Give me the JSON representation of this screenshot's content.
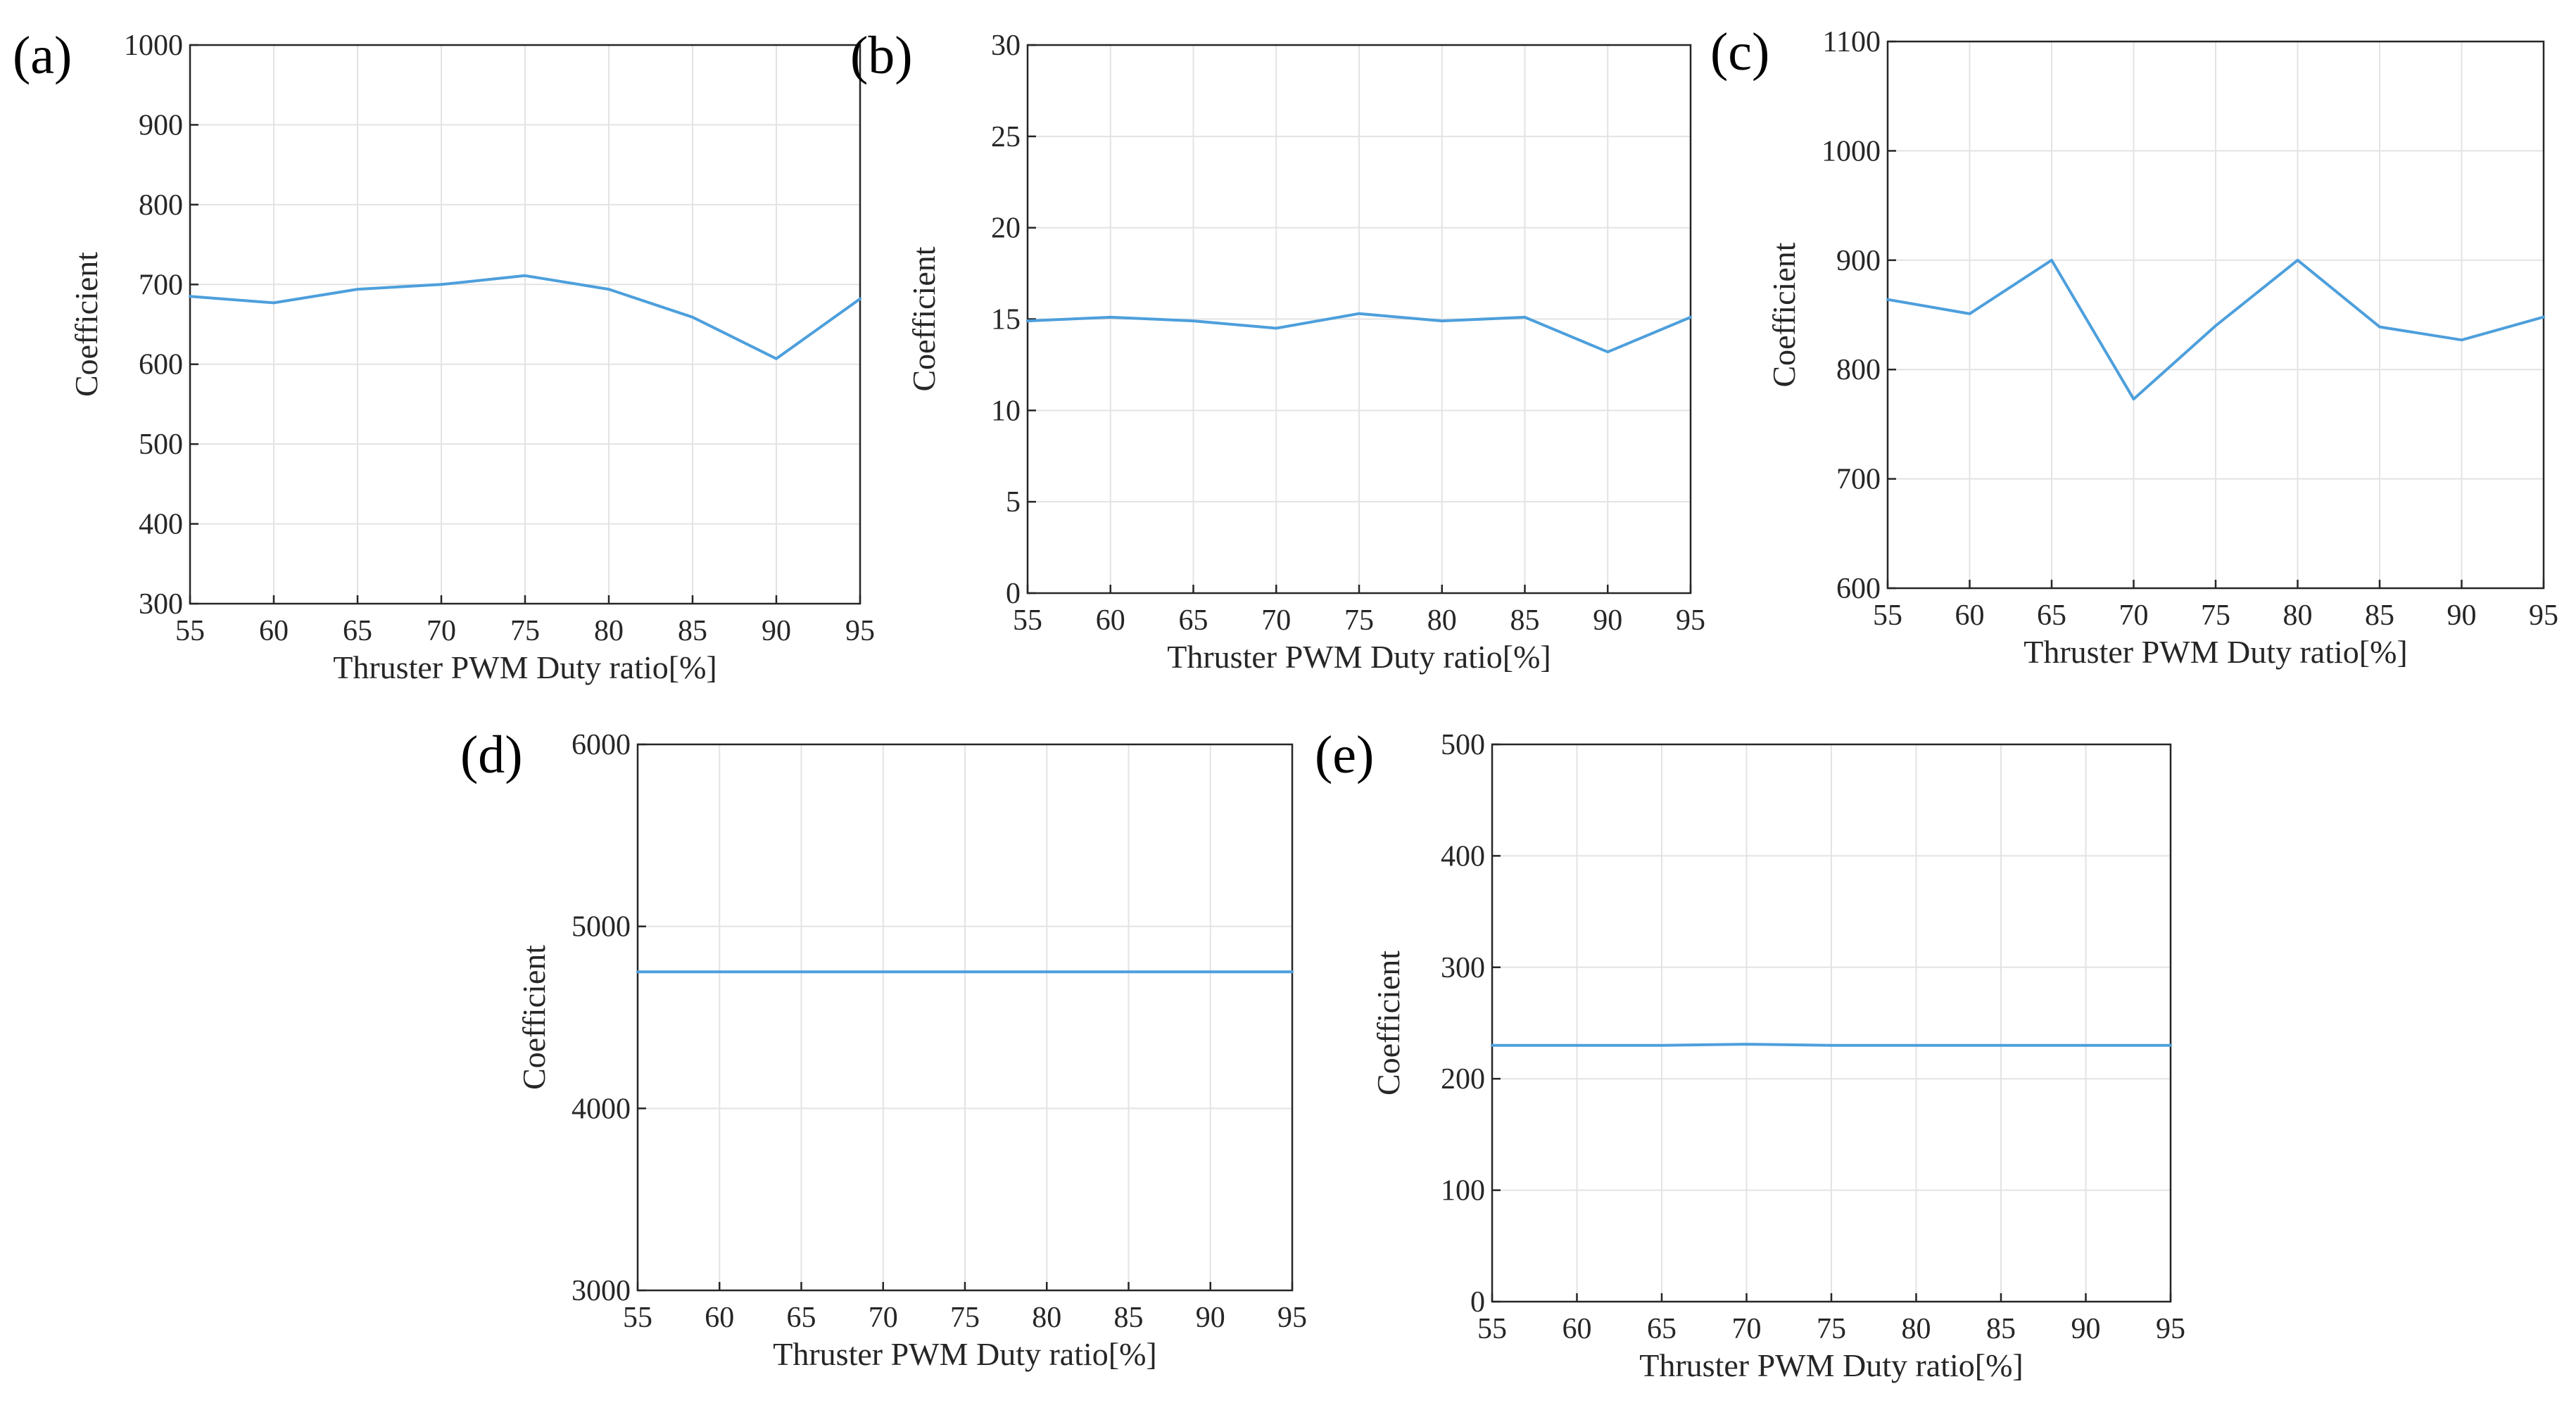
{
  "figure": {
    "line_color": "#4d9fdc",
    "grid_color": "#e3e3e3",
    "axis_color": "#262626"
  },
  "chart_data": [
    {
      "type": "line",
      "panel_label": "(a)",
      "xlabel": "Thruster PWM Duty ratio[%]",
      "ylabel": "Coefficient",
      "x": [
        55,
        60,
        65,
        70,
        75,
        80,
        85,
        90,
        95
      ],
      "y": [
        685,
        677,
        694,
        700,
        711,
        694,
        659,
        607,
        682
      ],
      "xlim": [
        55,
        95
      ],
      "ylim": [
        300,
        1000
      ],
      "xticks": [
        55,
        60,
        65,
        70,
        75,
        80,
        85,
        90,
        95
      ],
      "yticks": [
        300,
        400,
        500,
        600,
        700,
        800,
        900,
        1000
      ],
      "grid": true
    },
    {
      "type": "line",
      "panel_label": "(b)",
      "xlabel": "Thruster PWM Duty ratio[%]",
      "ylabel": "Coefficient",
      "x": [
        55,
        60,
        65,
        70,
        75,
        80,
        85,
        90,
        95
      ],
      "y": [
        14.9,
        15.1,
        14.9,
        14.5,
        15.3,
        14.9,
        15.1,
        13.2,
        15.1
      ],
      "xlim": [
        55,
        95
      ],
      "ylim": [
        0,
        30
      ],
      "xticks": [
        55,
        60,
        65,
        70,
        75,
        80,
        85,
        90,
        95
      ],
      "yticks": [
        0,
        5,
        10,
        15,
        20,
        25,
        30
      ],
      "grid": true
    },
    {
      "type": "line",
      "panel_label": "(c)",
      "xlabel": "Thruster PWM Duty ratio[%]",
      "ylabel": "Coefficient",
      "x": [
        55,
        60,
        65,
        70,
        75,
        80,
        85,
        90,
        95
      ],
      "y": [
        864,
        851,
        900,
        773,
        840,
        900,
        839,
        827,
        848
      ],
      "xlim": [
        55,
        95
      ],
      "ylim": [
        600,
        1100
      ],
      "xticks": [
        55,
        60,
        65,
        70,
        75,
        80,
        85,
        90,
        95
      ],
      "yticks": [
        600,
        700,
        800,
        900,
        1000,
        1100
      ],
      "grid": true
    },
    {
      "type": "line",
      "panel_label": "(d)",
      "xlabel": "Thruster PWM Duty ratio[%]",
      "ylabel": "Coefficient",
      "x": [
        55,
        60,
        65,
        70,
        75,
        80,
        85,
        90,
        95
      ],
      "y": [
        4750,
        4750,
        4750,
        4750,
        4750,
        4750,
        4750,
        4750,
        4750
      ],
      "xlim": [
        55,
        95
      ],
      "ylim": [
        3000,
        6000
      ],
      "xticks": [
        55,
        60,
        65,
        70,
        75,
        80,
        85,
        90,
        95
      ],
      "yticks": [
        3000,
        4000,
        5000,
        6000
      ],
      "grid": true
    },
    {
      "type": "line",
      "panel_label": "(e)",
      "xlabel": "Thruster PWM Duty ratio[%]",
      "ylabel": "Coefficient",
      "x": [
        55,
        60,
        65,
        70,
        75,
        80,
        85,
        90,
        95
      ],
      "y": [
        230,
        230,
        230,
        231,
        230,
        230,
        230,
        230,
        230
      ],
      "xlim": [
        55,
        95
      ],
      "ylim": [
        0,
        500
      ],
      "xticks": [
        55,
        60,
        65,
        70,
        75,
        80,
        85,
        90,
        95
      ],
      "yticks": [
        0,
        100,
        200,
        300,
        400,
        500
      ],
      "grid": true
    }
  ]
}
